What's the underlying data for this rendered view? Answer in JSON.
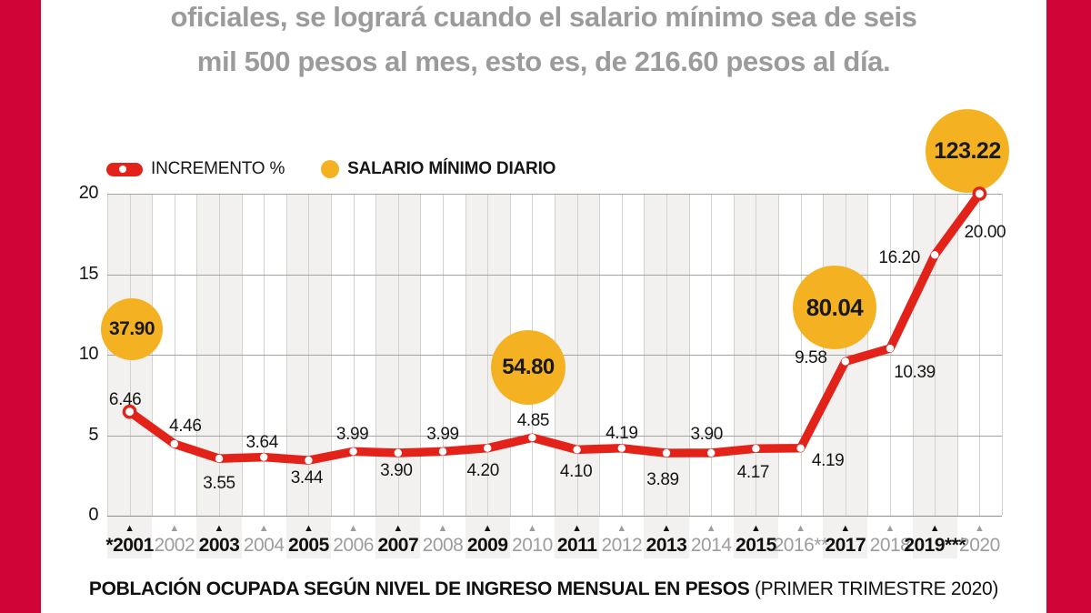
{
  "page": {
    "title_line1": "oficiales, se logrará cuando el salario mínimo sea de seis",
    "title_line2": "mil 500 pesos al mes, esto es, de 216.60 pesos al día.",
    "caption_bold": "POBLACIÓN OCUPADA SEGÚN NIVEL DE INGRESO MENSUAL EN PESOS",
    "caption_regular": " (PRIMER TRIMESTRE 2020)"
  },
  "legend": {
    "increment_label": "INCREMENTO %",
    "salary_label": "SALARIO MÍNIMO DIARIO"
  },
  "colors": {
    "border_band": "#d10438",
    "line_red": "#e3231a",
    "bubble_yellow": "#f4b223",
    "title_gray": "#9b9b9b",
    "muted_year_gray": "#9d9d9d",
    "text_black": "#111111",
    "stripe_gray": "#f2f1ef"
  },
  "chart_data": {
    "type": "line",
    "title": "",
    "xlabel": "",
    "ylabel": "",
    "ylim": [
      0,
      20
    ],
    "yticks": [
      0,
      5,
      10,
      15,
      20
    ],
    "grid": "vertical half-year lines, horizontal lines at yticks, alternating year stripes",
    "legend_position": "top-left",
    "categories": [
      "*2001",
      "2002",
      "2003",
      "2004",
      "2005",
      "2006",
      "2007",
      "2008",
      "2009",
      "2010",
      "2011",
      "2012",
      "2013",
      "2014",
      "2015",
      "2016**",
      "2017",
      "2018",
      "2019***",
      "2020"
    ],
    "series": [
      {
        "name": "INCREMENTO %",
        "values": [
          6.46,
          4.46,
          3.55,
          3.64,
          3.44,
          3.99,
          3.9,
          3.99,
          4.2,
          4.85,
          4.1,
          4.19,
          3.89,
          3.9,
          4.17,
          4.19,
          9.58,
          10.39,
          16.2,
          20.0
        ]
      }
    ],
    "value_labels": [
      "6.46",
      "4.46",
      "3.55",
      "3.64",
      "3.44",
      "3.99",
      "3.90",
      "3.99",
      "4.20",
      "4.85",
      "4.10",
      "4.19",
      "3.89",
      "3.90",
      "4.17",
      "4.19",
      "9.58",
      "10.39",
      "16.20",
      "20.00"
    ],
    "bubbles": [
      {
        "category": "*2001",
        "label": "37.90"
      },
      {
        "category": "2010",
        "label": "54.80"
      },
      {
        "category": "2017",
        "label": "80.04"
      },
      {
        "category": "2020",
        "label": "123.22"
      }
    ]
  }
}
